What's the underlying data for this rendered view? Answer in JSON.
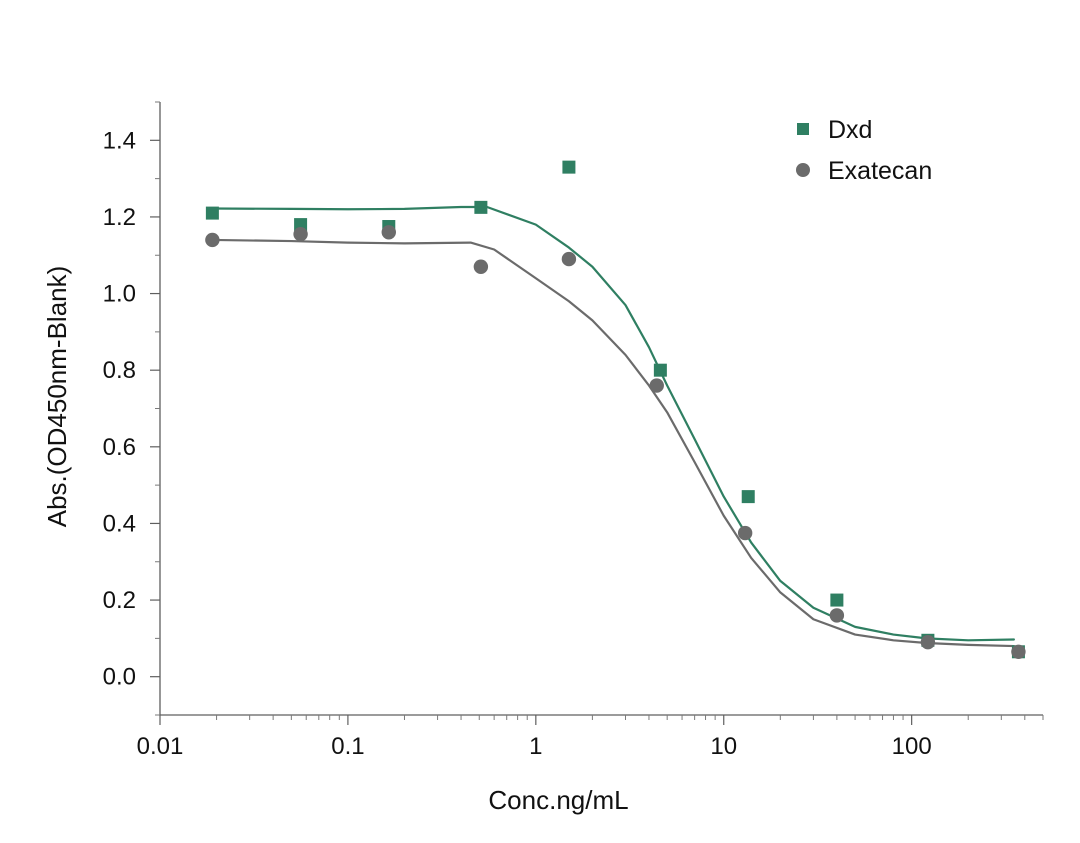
{
  "chart_data": {
    "type": "scatter",
    "title": "",
    "xlabel": "Conc.ng/mL",
    "ylabel": "Abs.(OD450nm-Blank)",
    "x_scale": "log",
    "xlim": [
      0.01,
      500
    ],
    "ylim": [
      -0.1,
      1.5
    ],
    "grid": false,
    "legend_position": "top-right",
    "x_ticks": [
      0.01,
      0.1,
      1,
      10,
      100
    ],
    "x_tick_labels": [
      "0.01",
      "0.1",
      "1",
      "10",
      "100"
    ],
    "y_ticks": [
      0.0,
      0.2,
      0.4,
      0.6,
      0.8,
      1.0,
      1.2,
      1.4
    ],
    "y_tick_labels": [
      "0.0",
      "0.2",
      "0.4",
      "0.6",
      "0.8",
      "1.0",
      "1.2",
      "1.4"
    ],
    "series": [
      {
        "name": "Dxd",
        "marker": "square",
        "color": "#2f7f62",
        "points": [
          {
            "x": 0.019,
            "y": 1.21
          },
          {
            "x": 0.056,
            "y": 1.18
          },
          {
            "x": 0.165,
            "y": 1.175
          },
          {
            "x": 0.51,
            "y": 1.225
          },
          {
            "x": 1.5,
            "y": 1.33
          },
          {
            "x": 4.6,
            "y": 0.8
          },
          {
            "x": 13.5,
            "y": 0.47
          },
          {
            "x": 40,
            "y": 0.2
          },
          {
            "x": 122,
            "y": 0.095
          },
          {
            "x": 370,
            "y": 0.065
          }
        ],
        "fit": [
          {
            "x": 0.019,
            "y": 1.222
          },
          {
            "x": 0.05,
            "y": 1.221
          },
          {
            "x": 0.1,
            "y": 1.22
          },
          {
            "x": 0.2,
            "y": 1.221
          },
          {
            "x": 0.4,
            "y": 1.226
          },
          {
            "x": 0.55,
            "y": 1.226
          },
          {
            "x": 1,
            "y": 1.18
          },
          {
            "x": 1.5,
            "y": 1.12
          },
          {
            "x": 2,
            "y": 1.07
          },
          {
            "x": 3,
            "y": 0.97
          },
          {
            "x": 4,
            "y": 0.86
          },
          {
            "x": 5,
            "y": 0.76
          },
          {
            "x": 7,
            "y": 0.62
          },
          {
            "x": 10,
            "y": 0.47
          },
          {
            "x": 14,
            "y": 0.35
          },
          {
            "x": 20,
            "y": 0.25
          },
          {
            "x": 30,
            "y": 0.18
          },
          {
            "x": 50,
            "y": 0.13
          },
          {
            "x": 80,
            "y": 0.11
          },
          {
            "x": 120,
            "y": 0.1
          },
          {
            "x": 200,
            "y": 0.095
          },
          {
            "x": 350,
            "y": 0.097
          }
        ]
      },
      {
        "name": "Exatecan",
        "marker": "circle",
        "color": "#6b6b6b",
        "points": [
          {
            "x": 0.019,
            "y": 1.14
          },
          {
            "x": 0.056,
            "y": 1.155
          },
          {
            "x": 0.165,
            "y": 1.16
          },
          {
            "x": 0.51,
            "y": 1.07
          },
          {
            "x": 1.5,
            "y": 1.09
          },
          {
            "x": 4.4,
            "y": 0.76
          },
          {
            "x": 13.0,
            "y": 0.375
          },
          {
            "x": 40,
            "y": 0.16
          },
          {
            "x": 122,
            "y": 0.09
          },
          {
            "x": 370,
            "y": 0.065
          }
        ],
        "fit": [
          {
            "x": 0.019,
            "y": 1.14
          },
          {
            "x": 0.05,
            "y": 1.137
          },
          {
            "x": 0.1,
            "y": 1.133
          },
          {
            "x": 0.2,
            "y": 1.131
          },
          {
            "x": 0.45,
            "y": 1.133
          },
          {
            "x": 0.6,
            "y": 1.115
          },
          {
            "x": 1,
            "y": 1.04
          },
          {
            "x": 1.5,
            "y": 0.98
          },
          {
            "x": 2,
            "y": 0.93
          },
          {
            "x": 3,
            "y": 0.84
          },
          {
            "x": 4,
            "y": 0.76
          },
          {
            "x": 5,
            "y": 0.69
          },
          {
            "x": 7,
            "y": 0.56
          },
          {
            "x": 10,
            "y": 0.42
          },
          {
            "x": 14,
            "y": 0.31
          },
          {
            "x": 20,
            "y": 0.22
          },
          {
            "x": 30,
            "y": 0.15
          },
          {
            "x": 50,
            "y": 0.11
          },
          {
            "x": 80,
            "y": 0.095
          },
          {
            "x": 120,
            "y": 0.088
          },
          {
            "x": 200,
            "y": 0.083
          },
          {
            "x": 350,
            "y": 0.08
          }
        ]
      }
    ]
  }
}
